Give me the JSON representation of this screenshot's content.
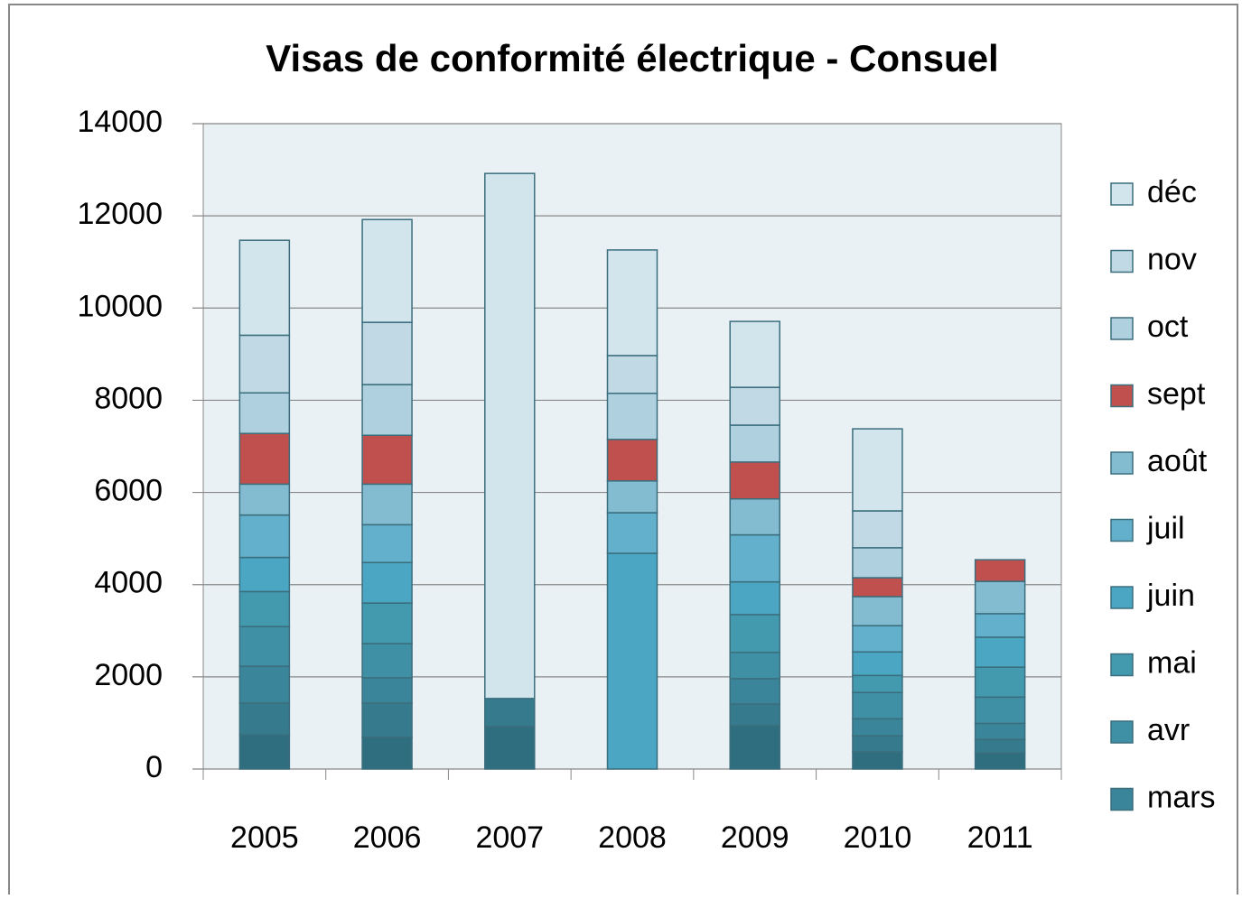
{
  "chart_data": {
    "type": "stacked_bar",
    "title": "Visas de conformité électrique - Consuel",
    "categories": [
      "2005",
      "2006",
      "2007",
      "2008",
      "2009",
      "2010",
      "2011"
    ],
    "series": [
      {
        "name": null,
        "color": "#2f6e7e",
        "values": [
          740,
          690,
          920,
          0,
          940,
          370,
          350
        ]
      },
      {
        "name": null,
        "color": "#357b8d",
        "values": [
          690,
          740,
          610,
          0,
          470,
          350,
          290
        ]
      },
      {
        "name": "mars",
        "color": "#3a8599",
        "values": [
          800,
          550,
          0,
          0,
          550,
          370,
          350
        ]
      },
      {
        "name": "avr",
        "color": "#3f8fa5",
        "values": [
          860,
          740,
          0,
          0,
          570,
          570,
          570
        ]
      },
      {
        "name": "mai",
        "color": "#4399ae",
        "values": [
          760,
          880,
          0,
          0,
          820,
          370,
          650
        ]
      },
      {
        "name": "juin",
        "color": "#4aa6c2",
        "values": [
          740,
          880,
          0,
          4680,
          710,
          510,
          650
        ]
      },
      {
        "name": "juil",
        "color": "#62b0cb",
        "values": [
          920,
          820,
          0,
          880,
          1020,
          570,
          510
        ]
      },
      {
        "name": "août",
        "color": "#83bcd0",
        "values": [
          670,
          880,
          0,
          690,
          780,
          630,
          700
        ]
      },
      {
        "name": "sept",
        "color": "#c0504d",
        "values": [
          1100,
          1060,
          0,
          900,
          800,
          410,
          470
        ]
      },
      {
        "name": "oct",
        "color": "#aed0df",
        "values": [
          880,
          1100,
          0,
          1000,
          800,
          650,
          null
        ]
      },
      {
        "name": "nov",
        "color": "#c0d9e5",
        "values": [
          1250,
          1350,
          0,
          820,
          820,
          800,
          null
        ]
      },
      {
        "name": "déc",
        "color": "#d2e5ec",
        "values": [
          2060,
          2230,
          11390,
          2290,
          1430,
          1780,
          null
        ]
      }
    ],
    "ylim": [
      0,
      14000
    ],
    "yticks": [
      0,
      2000,
      4000,
      6000,
      8000,
      10000,
      12000,
      14000
    ],
    "grid": true
  }
}
